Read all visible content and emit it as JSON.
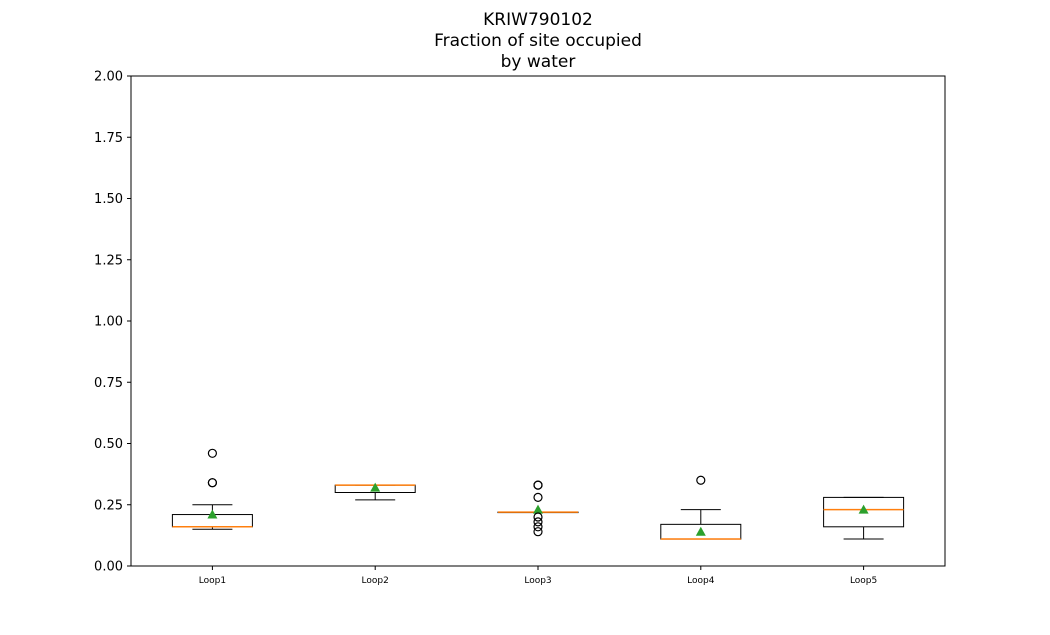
{
  "chart_data": {
    "type": "box",
    "title_lines": [
      "KRIW790102",
      "Fraction of site occupied",
      "by water"
    ],
    "xlabel": "",
    "ylabel": "",
    "ylim": [
      0,
      2.0
    ],
    "yticks": [
      "0.00",
      "0.25",
      "0.50",
      "0.75",
      "1.00",
      "1.25",
      "1.50",
      "1.75",
      "2.00"
    ],
    "grid": false,
    "legend": "none",
    "colors": {
      "box": "#000000",
      "median": "#ff7f0e",
      "mean": "#2ca02c",
      "flier": "#000000"
    },
    "boxes": [
      {
        "label": "Loop1",
        "whisker_low": 0.15,
        "q1": 0.16,
        "median": 0.16,
        "q3": 0.21,
        "whisker_high": 0.25,
        "mean": 0.21,
        "fliers": [
          0.34,
          0.34,
          0.46
        ]
      },
      {
        "label": "Loop2",
        "whisker_low": 0.27,
        "q1": 0.3,
        "median": 0.33,
        "q3": 0.33,
        "whisker_high": 0.33,
        "mean": 0.32,
        "fliers": []
      },
      {
        "label": "Loop3",
        "whisker_low": 0.22,
        "q1": 0.22,
        "median": 0.22,
        "q3": 0.22,
        "whisker_high": 0.22,
        "mean": 0.23,
        "fliers": [
          0.14,
          0.16,
          0.18,
          0.2,
          0.28,
          0.33,
          0.33
        ]
      },
      {
        "label": "Loop4",
        "whisker_low": 0.11,
        "q1": 0.11,
        "median": 0.11,
        "q3": 0.17,
        "whisker_high": 0.23,
        "mean": 0.14,
        "fliers": [
          0.35
        ]
      },
      {
        "label": "Loop5",
        "whisker_low": 0.11,
        "q1": 0.16,
        "median": 0.23,
        "q3": 0.28,
        "whisker_high": 0.28,
        "mean": 0.23,
        "fliers": []
      }
    ]
  }
}
